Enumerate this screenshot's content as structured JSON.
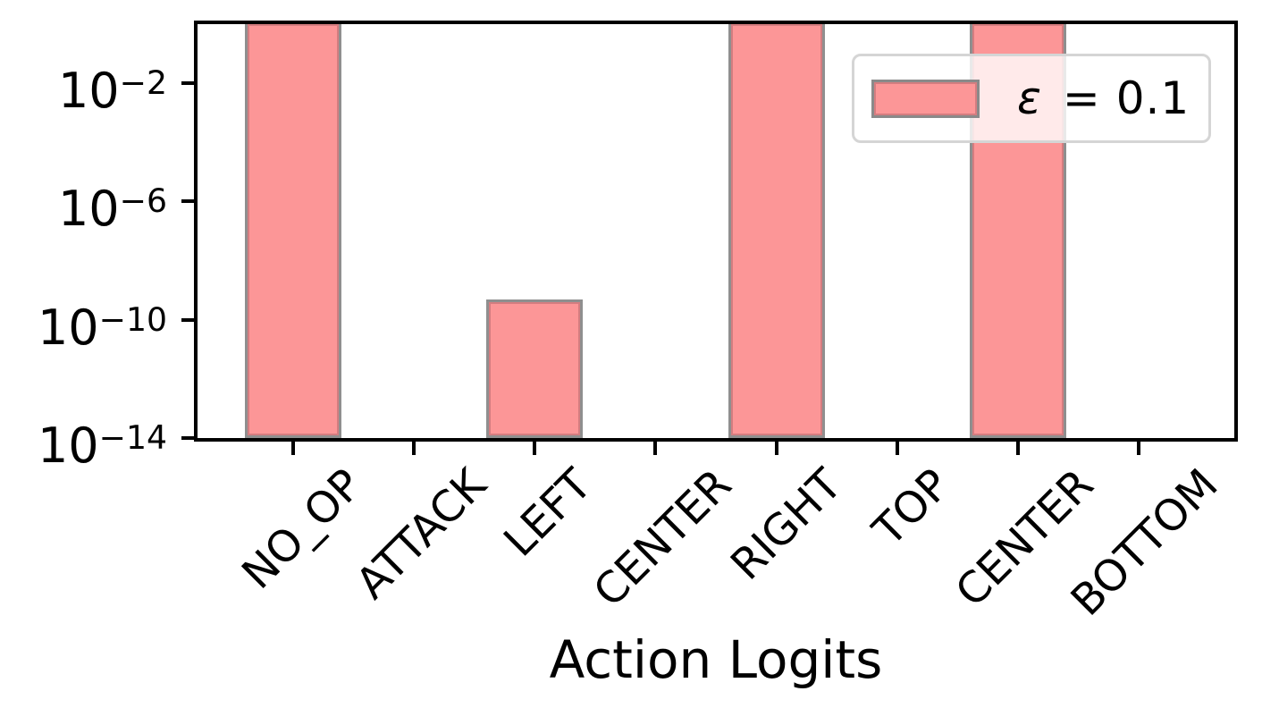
{
  "chart_data": {
    "type": "bar",
    "title": "",
    "xlabel": "Action Logits",
    "ylabel": "",
    "yscale": "log",
    "ylim": [
      1e-14,
      1
    ],
    "xlim": [
      -0.79,
      7.79
    ],
    "grid": false,
    "legend_position": "upper right",
    "categories": [
      "NO_OP",
      "ATTACK",
      "LEFT",
      "CENTER",
      "RIGHT",
      "TOP",
      "CENTER",
      "BOTTOM"
    ],
    "values": [
      1.0,
      0,
      4.9e-10,
      0,
      1.0,
      0,
      1.0,
      0
    ],
    "bar_width_fraction": 0.8,
    "ytick_exponents": [
      -2,
      -6,
      -10,
      -14
    ],
    "ytick_labels": [
      "10⁻²",
      "10⁻⁶",
      "10⁻¹⁰",
      "10⁻¹⁴"
    ],
    "legend": {
      "symbol": "ε",
      "rest": " = 0.1",
      "label": "ε = 0.1"
    },
    "colors": {
      "bar_fill": "#fc9697",
      "bar_edge": "#8f8f8f",
      "axis": "#000000",
      "legend_border": "#d5d5d5",
      "legend_bg": "rgba(255,255,255,0.8)"
    }
  }
}
